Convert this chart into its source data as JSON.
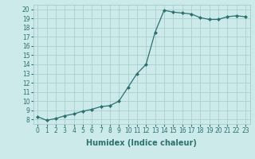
{
  "x": [
    0,
    1,
    2,
    3,
    4,
    5,
    6,
    7,
    8,
    9,
    10,
    11,
    12,
    13,
    14,
    15,
    16,
    17,
    18,
    19,
    20,
    21,
    22,
    23
  ],
  "y": [
    8.3,
    7.9,
    8.1,
    8.4,
    8.6,
    8.9,
    9.1,
    9.4,
    9.5,
    10.0,
    11.5,
    13.0,
    14.0,
    17.5,
    19.9,
    19.7,
    19.6,
    19.5,
    19.1,
    18.9,
    18.9,
    19.2,
    19.3,
    19.2
  ],
  "line_color": "#2d7070",
  "marker": "D",
  "markersize": 2.0,
  "linewidth": 0.9,
  "xlabel": "Humidex (Indice chaleur)",
  "xlabel_fontsize": 7,
  "background_color": "#cdeaea",
  "grid_color": "#aacece",
  "xlim": [
    -0.5,
    23.5
  ],
  "ylim": [
    7.5,
    20.5
  ],
  "yticks": [
    8,
    9,
    10,
    11,
    12,
    13,
    14,
    15,
    16,
    17,
    18,
    19,
    20
  ],
  "xticks": [
    0,
    1,
    2,
    3,
    4,
    5,
    6,
    7,
    8,
    9,
    10,
    11,
    12,
    13,
    14,
    15,
    16,
    17,
    18,
    19,
    20,
    21,
    22,
    23
  ],
  "tick_fontsize": 5.5
}
